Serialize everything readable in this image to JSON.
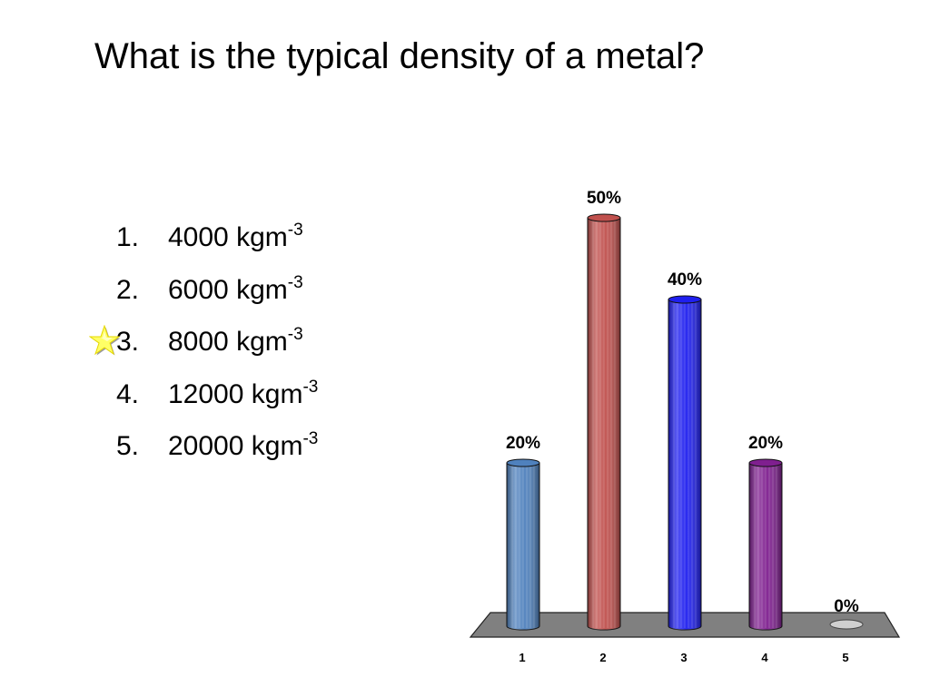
{
  "slide": {
    "title": "What is the typical density of a metal?",
    "correct_marker_icon": "star-icon",
    "answers": [
      {
        "number": "1.",
        "value": "4000 kgm",
        "exponent": "-3",
        "correct": false
      },
      {
        "number": "2.",
        "value": "6000 kgm",
        "exponent": "-3",
        "correct": false
      },
      {
        "number": "3.",
        "value": "8000 kgm",
        "exponent": "-3",
        "correct": true
      },
      {
        "number": "4.",
        "value": "12000 kgm",
        "exponent": "-3",
        "correct": false
      },
      {
        "number": "5.",
        "value": "20000 kgm",
        "exponent": "-3",
        "correct": false
      }
    ]
  },
  "chart_data": {
    "type": "bar",
    "categories": [
      "1",
      "2",
      "3",
      "4",
      "5"
    ],
    "values": [
      20,
      50,
      40,
      20,
      0
    ],
    "value_labels": [
      "20%",
      "50%",
      "40%",
      "20%",
      "0%"
    ],
    "ylim": [
      0,
      50
    ],
    "grid": false,
    "colors": [
      "#4f81bd",
      "#c0504d",
      "#1f1fef",
      "#7f1f8f",
      "#cfcfcf"
    ],
    "floor_color": "#808080"
  }
}
